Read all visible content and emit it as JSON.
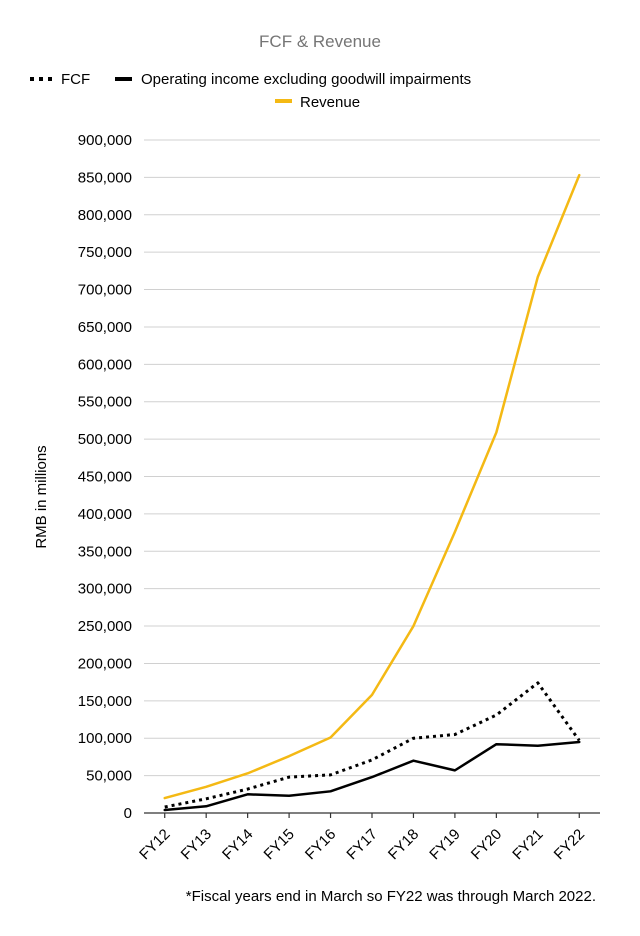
{
  "chart_data": {
    "type": "line",
    "title": "FCF & Revenue",
    "xlabel": "",
    "ylabel": "RMB in millions",
    "categories": [
      "FY12",
      "FY13",
      "FY14",
      "FY15",
      "FY16",
      "FY17",
      "FY18",
      "FY19",
      "FY20",
      "FY21",
      "FY22"
    ],
    "ylim": [
      0,
      900000
    ],
    "yticks": [
      0,
      50000,
      100000,
      150000,
      200000,
      250000,
      300000,
      350000,
      400000,
      450000,
      500000,
      550000,
      600000,
      650000,
      700000,
      750000,
      800000,
      850000,
      900000
    ],
    "ytick_labels": [
      "0",
      "50,000",
      "100,000",
      "150,000",
      "200,000",
      "250,000",
      "300,000",
      "350,000",
      "400,000",
      "450,000",
      "500,000",
      "550,000",
      "600,000",
      "650,000",
      "700,000",
      "750,000",
      "800,000",
      "850,000",
      "900,000"
    ],
    "grid": true,
    "legend_position": "top",
    "series": [
      {
        "name": "FCF",
        "style": "dotted",
        "color": "#000000",
        "values": [
          8000,
          19000,
          32000,
          48000,
          51000,
          71000,
          100000,
          105000,
          131000,
          174000,
          97000
        ]
      },
      {
        "name": "Operating income excluding goodwill impairments",
        "style": "solid",
        "color": "#000000",
        "values": [
          4000,
          9000,
          25000,
          23000,
          29000,
          48000,
          70000,
          57000,
          92000,
          90000,
          95000
        ]
      },
      {
        "name": "Revenue",
        "style": "solid",
        "color": "#F4B914",
        "values": [
          20000,
          35000,
          53000,
          76000,
          101000,
          158000,
          250000,
          376000,
          509000,
          717000,
          853000
        ]
      }
    ],
    "footnote": "*Fiscal years end in March so FY22 was through March 2022."
  }
}
